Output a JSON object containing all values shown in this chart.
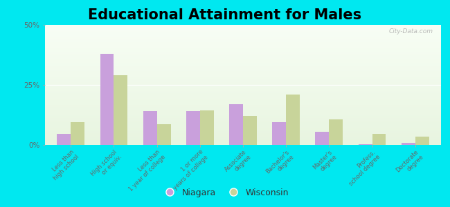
{
  "title": "Educational Attainment for Males",
  "categories": [
    "Less than\nhigh school",
    "High school\nor equiv.",
    "Less than\n1 year of college",
    "1 or more\nyears of college",
    "Associate\ndegree",
    "Bachelor's\ndegree",
    "Master's\ndegree",
    "Profess.\nschool degree",
    "Doctorate\ndegree"
  ],
  "niagara": [
    4.5,
    38.0,
    14.0,
    14.0,
    17.0,
    9.5,
    5.5,
    0.4,
    1.0
  ],
  "wisconsin": [
    9.5,
    29.0,
    8.5,
    14.5,
    12.0,
    21.0,
    10.5,
    4.5,
    3.5
  ],
  "niagara_color": "#c9a0dc",
  "wisconsin_color": "#c8d49a",
  "outer_bg": "#00e8f0",
  "ylim": [
    0,
    50
  ],
  "yticks": [
    0,
    25,
    50
  ],
  "ytick_labels": [
    "0%",
    "25%",
    "50%"
  ],
  "watermark": "City-Data.com",
  "title_fontsize": 15,
  "legend_niagara": "Niagara",
  "legend_wisconsin": "Wisconsin",
  "bar_width": 0.32
}
